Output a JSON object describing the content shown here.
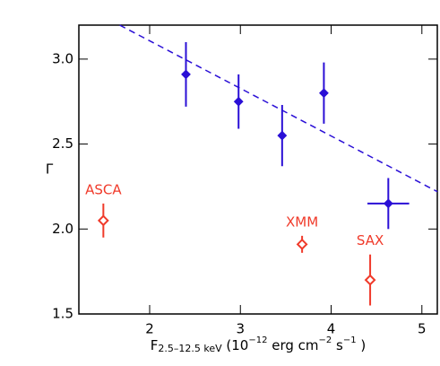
{
  "chart_data": {
    "type": "scatter",
    "ylabel": "Γ",
    "xlabel": {
      "main": "F",
      "sub": "2.5–12.5 keV",
      "rest1": " (10",
      "sup1": "−12",
      "rest2": " erg cm",
      "sup2": "−2",
      "rest3": " s",
      "sup3": "−1",
      "rest4": " )"
    },
    "xlim": [
      1.22,
      5.17
    ],
    "ylim": [
      1.5,
      3.2
    ],
    "xticks": [
      2,
      3,
      4,
      5
    ],
    "yticks": [
      1.5,
      {
        "value": 2,
        "label": "2.0"
      },
      2.5,
      {
        "value": 3,
        "label": "3.0"
      }
    ],
    "series": [
      {
        "color": "#2a0fd6",
        "marker": "filled",
        "x": [
          2.4,
          2.98,
          3.46,
          3.92,
          4.63
        ],
        "values": [
          2.91,
          2.75,
          2.55,
          2.8,
          2.15
        ],
        "yerr": [
          0.19,
          0.16,
          0.18,
          0.18,
          0.15
        ],
        "xerr": [
          null,
          null,
          null,
          null,
          0.23
        ]
      },
      {
        "color": "#f03a2a",
        "marker": "open",
        "x": [
          1.49,
          3.68,
          4.43
        ],
        "values": [
          2.05,
          1.91,
          1.7
        ],
        "yerr": [
          0.1,
          0.05,
          0.15
        ],
        "point_labels": [
          "ASCA",
          "XMM",
          "SAX"
        ]
      },
      {
        "color": "#2a0fd6",
        "style": "dashed",
        "x": [
          1.67,
          5.17
        ],
        "values": [
          3.2,
          2.22
        ]
      }
    ]
  }
}
